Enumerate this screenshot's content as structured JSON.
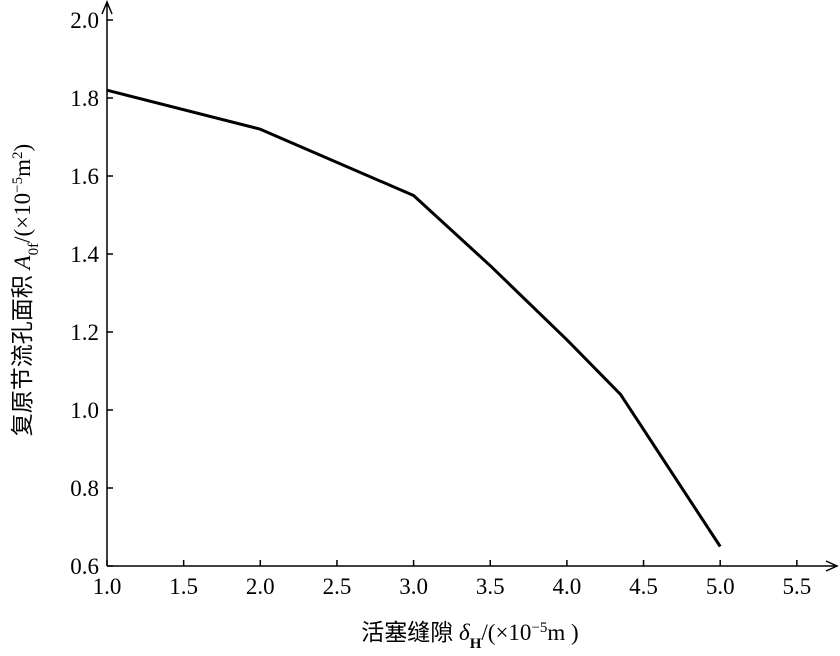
{
  "chart_data": {
    "type": "line",
    "x_label": [
      "活塞缝隙 ",
      "δ",
      "H",
      "/(×10",
      "−5",
      "m )"
    ],
    "y_label": [
      "复原节流孔面积 ",
      "A",
      "0f",
      "/(×10",
      "−5",
      "m",
      "2",
      ")"
    ],
    "series": [
      {
        "color": "#000000",
        "x": [
          1.0,
          2.0,
          3.0,
          3.5,
          4.0,
          4.35,
          4.5,
          5.0
        ],
        "values": [
          1.82,
          1.72,
          1.55,
          1.37,
          1.18,
          1.04,
          0.95,
          0.65
        ]
      }
    ],
    "xlim": [
      1.0,
      5.72
    ],
    "ylim": [
      0.6,
      2.06
    ],
    "xticks": [
      {
        "value": 1,
        "label": "1.0"
      },
      1.5,
      {
        "value": 2,
        "label": "2.0"
      },
      2.5,
      {
        "value": 3,
        "label": "3.0"
      },
      3.5,
      {
        "value": 4,
        "label": "4.0"
      },
      4.5,
      {
        "value": 5,
        "label": "5.0"
      },
      5.5
    ],
    "yticks": [
      0.6,
      0.8,
      {
        "value": 1,
        "label": "1.0"
      },
      1.2,
      1.4,
      1.6,
      1.8,
      {
        "value": 2,
        "label": "2.0"
      }
    ]
  }
}
